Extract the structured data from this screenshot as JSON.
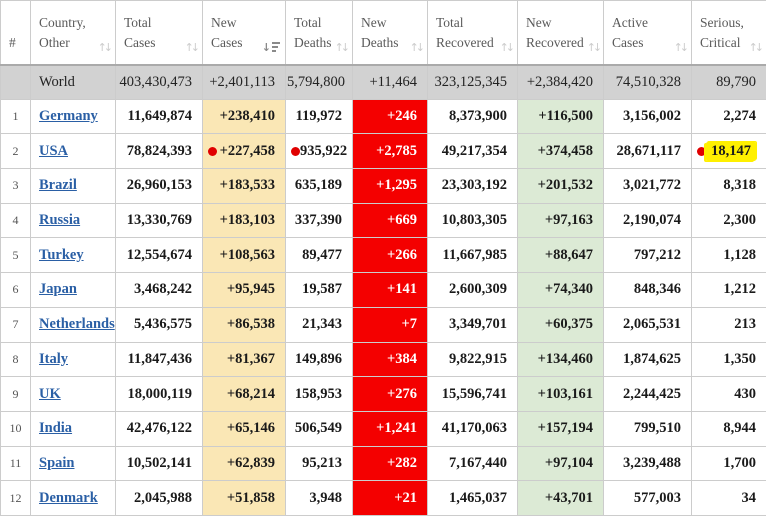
{
  "table": {
    "colors": {
      "new_cases_bg": "#FAE7B5",
      "new_deaths_bg": "#F40000",
      "new_recovered_bg": "#DCEAD5",
      "world_row_bg": "#D2D2D2",
      "highlight_bg": "#FFF000",
      "marker_dot": "#E00000",
      "link_blue": "#2A5FA5"
    },
    "columns": [
      {
        "key": "rank",
        "lines": [
          "#"
        ],
        "sort": "none"
      },
      {
        "key": "country",
        "lines": [
          "Country,",
          "Other"
        ],
        "sort": "both"
      },
      {
        "key": "total_cases",
        "lines": [
          "Total",
          "Cases"
        ],
        "sort": "both"
      },
      {
        "key": "new_cases",
        "lines": [
          "New",
          "Cases"
        ],
        "sort": "desc"
      },
      {
        "key": "total_deaths",
        "lines": [
          "Total",
          "Deaths"
        ],
        "sort": "both"
      },
      {
        "key": "new_deaths",
        "lines": [
          "New",
          "Deaths"
        ],
        "sort": "both"
      },
      {
        "key": "total_recovered",
        "lines": [
          "Total",
          "Recovered"
        ],
        "sort": "both"
      },
      {
        "key": "new_recovered",
        "lines": [
          "New",
          "Recovered"
        ],
        "sort": "both"
      },
      {
        "key": "active_cases",
        "lines": [
          "Active",
          "Cases"
        ],
        "sort": "both"
      },
      {
        "key": "serious_critical",
        "lines": [
          "Serious,",
          "Critical"
        ],
        "sort": "both"
      }
    ],
    "world_row": {
      "rank": "",
      "country": "World",
      "total_cases": "403,430,473",
      "new_cases": "+2,401,113",
      "total_deaths": "5,794,800",
      "new_deaths": "+11,464",
      "total_recovered": "323,125,345",
      "new_recovered": "+2,384,420",
      "active_cases": "74,510,328",
      "serious_critical": "89,790"
    },
    "rows": [
      {
        "rank": "1",
        "country": "Germany",
        "total_cases": "11,649,874",
        "new_cases": "+238,410",
        "total_deaths": "119,972",
        "new_deaths": "+246",
        "total_recovered": "8,373,900",
        "new_recovered": "+116,500",
        "active_cases": "3,156,002",
        "serious_critical": "2,274"
      },
      {
        "rank": "2",
        "country": "USA",
        "total_cases": "78,824,393",
        "new_cases": "+227,458",
        "total_deaths": "935,922",
        "new_deaths": "+2,785",
        "total_recovered": "49,217,354",
        "new_recovered": "+374,458",
        "active_cases": "28,671,117",
        "serious_critical": "18,147",
        "markers": {
          "new_cases": true,
          "total_deaths": true,
          "serious_critical": true
        },
        "highlight": {
          "serious_critical": true
        }
      },
      {
        "rank": "3",
        "country": "Brazil",
        "total_cases": "26,960,153",
        "new_cases": "+183,533",
        "total_deaths": "635,189",
        "new_deaths": "+1,295",
        "total_recovered": "23,303,192",
        "new_recovered": "+201,532",
        "active_cases": "3,021,772",
        "serious_critical": "8,318"
      },
      {
        "rank": "4",
        "country": "Russia",
        "total_cases": "13,330,769",
        "new_cases": "+183,103",
        "total_deaths": "337,390",
        "new_deaths": "+669",
        "total_recovered": "10,803,305",
        "new_recovered": "+97,163",
        "active_cases": "2,190,074",
        "serious_critical": "2,300"
      },
      {
        "rank": "5",
        "country": "Turkey",
        "total_cases": "12,554,674",
        "new_cases": "+108,563",
        "total_deaths": "89,477",
        "new_deaths": "+266",
        "total_recovered": "11,667,985",
        "new_recovered": "+88,647",
        "active_cases": "797,212",
        "serious_critical": "1,128"
      },
      {
        "rank": "6",
        "country": "Japan",
        "total_cases": "3,468,242",
        "new_cases": "+95,945",
        "total_deaths": "19,587",
        "new_deaths": "+141",
        "total_recovered": "2,600,309",
        "new_recovered": "+74,340",
        "active_cases": "848,346",
        "serious_critical": "1,212"
      },
      {
        "rank": "7",
        "country": "Netherlands",
        "total_cases": "5,436,575",
        "new_cases": "+86,538",
        "total_deaths": "21,343",
        "new_deaths": "+7",
        "total_recovered": "3,349,701",
        "new_recovered": "+60,375",
        "active_cases": "2,065,531",
        "serious_critical": "213"
      },
      {
        "rank": "8",
        "country": "Italy",
        "total_cases": "11,847,436",
        "new_cases": "+81,367",
        "total_deaths": "149,896",
        "new_deaths": "+384",
        "total_recovered": "9,822,915",
        "new_recovered": "+134,460",
        "active_cases": "1,874,625",
        "serious_critical": "1,350"
      },
      {
        "rank": "9",
        "country": "UK",
        "total_cases": "18,000,119",
        "new_cases": "+68,214",
        "total_deaths": "158,953",
        "new_deaths": "+276",
        "total_recovered": "15,596,741",
        "new_recovered": "+103,161",
        "active_cases": "2,244,425",
        "serious_critical": "430"
      },
      {
        "rank": "10",
        "country": "India",
        "total_cases": "42,476,122",
        "new_cases": "+65,146",
        "total_deaths": "506,549",
        "new_deaths": "+1,241",
        "total_recovered": "41,170,063",
        "new_recovered": "+157,194",
        "active_cases": "799,510",
        "serious_critical": "8,944"
      },
      {
        "rank": "11",
        "country": "Spain",
        "total_cases": "10,502,141",
        "new_cases": "+62,839",
        "total_deaths": "95,213",
        "new_deaths": "+282",
        "total_recovered": "7,167,440",
        "new_recovered": "+97,104",
        "active_cases": "3,239,488",
        "serious_critical": "1,700"
      },
      {
        "rank": "12",
        "country": "Denmark",
        "total_cases": "2,045,988",
        "new_cases": "+51,858",
        "total_deaths": "3,948",
        "new_deaths": "+21",
        "total_recovered": "1,465,037",
        "new_recovered": "+43,701",
        "active_cases": "577,003",
        "serious_critical": "34"
      }
    ]
  }
}
